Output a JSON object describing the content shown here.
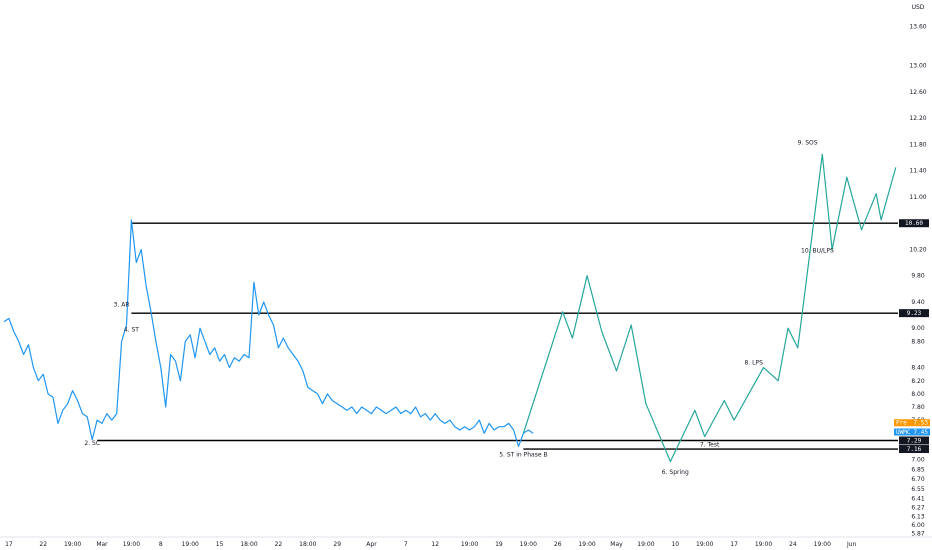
{
  "chart_data": {
    "type": "line",
    "currency": "USD",
    "ylim": [
      5.82,
      14.0
    ],
    "y_ticks": [
      {
        "v": 13.6,
        "label": "13.60"
      },
      {
        "v": 13.0,
        "label": "13.00"
      },
      {
        "v": 12.6,
        "label": "12.60"
      },
      {
        "v": 12.2,
        "label": "12.20"
      },
      {
        "v": 11.8,
        "label": "11.80"
      },
      {
        "v": 11.4,
        "label": "11.40"
      },
      {
        "v": 11.0,
        "label": "11.00"
      },
      {
        "v": 10.2,
        "label": "10.20"
      },
      {
        "v": 9.8,
        "label": "9.80"
      },
      {
        "v": 9.4,
        "label": "9.40"
      },
      {
        "v": 9.0,
        "label": "9.00"
      },
      {
        "v": 8.8,
        "label": "8.80"
      },
      {
        "v": 8.4,
        "label": "8.40"
      },
      {
        "v": 8.2,
        "label": "8.20"
      },
      {
        "v": 8.0,
        "label": "8.00"
      },
      {
        "v": 7.8,
        "label": "7.80"
      },
      {
        "v": 7.6,
        "label": "7.60"
      },
      {
        "v": 7.0,
        "label": "7.00"
      },
      {
        "v": 6.85,
        "label": "6.85"
      },
      {
        "v": 6.7,
        "label": "6.70"
      },
      {
        "v": 6.55,
        "label": "6.55"
      },
      {
        "v": 6.41,
        "label": "6.41"
      },
      {
        "v": 6.27,
        "label": "6.27"
      },
      {
        "v": 6.13,
        "label": "6.13"
      },
      {
        "v": 6.0,
        "label": "6.00"
      },
      {
        "v": 5.87,
        "label": "5.87"
      }
    ],
    "x_ticks": [
      {
        "i": 1,
        "label": "17"
      },
      {
        "i": 8,
        "label": "22"
      },
      {
        "i": 14,
        "label": "19:00"
      },
      {
        "i": 20,
        "label": "Mar"
      },
      {
        "i": 26,
        "label": "19:00"
      },
      {
        "i": 32,
        "label": "8"
      },
      {
        "i": 38,
        "label": "19:00"
      },
      {
        "i": 44,
        "label": "15"
      },
      {
        "i": 50,
        "label": "18:00"
      },
      {
        "i": 56,
        "label": "22"
      },
      {
        "i": 62,
        "label": "18:00"
      },
      {
        "i": 68,
        "label": "29"
      },
      {
        "i": 75,
        "label": "Apr"
      },
      {
        "i": 82,
        "label": "7"
      },
      {
        "i": 88,
        "label": "12"
      },
      {
        "i": 95,
        "label": "19:00"
      },
      {
        "i": 101,
        "label": "19"
      },
      {
        "i": 107,
        "label": "19:00"
      },
      {
        "i": 113,
        "label": "26"
      },
      {
        "i": 119,
        "label": "19:00"
      },
      {
        "i": 125,
        "label": "May"
      },
      {
        "i": 131,
        "label": "19:00"
      },
      {
        "i": 137,
        "label": "10"
      },
      {
        "i": 143,
        "label": "19:00"
      },
      {
        "i": 149,
        "label": "17"
      },
      {
        "i": 155,
        "label": "19:00"
      },
      {
        "i": 161,
        "label": "24"
      },
      {
        "i": 167,
        "label": "19:00"
      },
      {
        "i": 173,
        "label": "Jun"
      }
    ],
    "x_count": 178,
    "series": [
      {
        "role": "price",
        "color": "#2196f3",
        "points": [
          [
            0,
            9.1
          ],
          [
            1,
            9.15
          ],
          [
            2,
            8.95
          ],
          [
            3,
            8.8
          ],
          [
            4,
            8.6
          ],
          [
            5,
            8.75
          ],
          [
            6,
            8.4
          ],
          [
            7,
            8.2
          ],
          [
            8,
            8.3
          ],
          [
            9,
            8.0
          ],
          [
            10,
            7.95
          ],
          [
            11,
            7.55
          ],
          [
            12,
            7.75
          ],
          [
            13,
            7.85
          ],
          [
            14,
            8.05
          ],
          [
            15,
            7.9
          ],
          [
            16,
            7.7
          ],
          [
            17,
            7.65
          ],
          [
            18,
            7.3
          ],
          [
            19,
            7.6
          ],
          [
            20,
            7.55
          ],
          [
            21,
            7.7
          ],
          [
            22,
            7.6
          ],
          [
            23,
            7.7
          ],
          [
            24,
            8.8
          ],
          [
            25,
            9.05
          ],
          [
            26,
            10.65
          ],
          [
            27,
            10.0
          ],
          [
            28,
            10.2
          ],
          [
            29,
            9.65
          ],
          [
            30,
            9.25
          ],
          [
            31,
            8.8
          ],
          [
            32,
            8.4
          ],
          [
            33,
            7.8
          ],
          [
            34,
            8.6
          ],
          [
            35,
            8.5
          ],
          [
            36,
            8.2
          ],
          [
            37,
            8.8
          ],
          [
            38,
            8.9
          ],
          [
            39,
            8.55
          ],
          [
            40,
            9.0
          ],
          [
            41,
            8.8
          ],
          [
            42,
            8.6
          ],
          [
            43,
            8.7
          ],
          [
            44,
            8.5
          ],
          [
            45,
            8.6
          ],
          [
            46,
            8.4
          ],
          [
            47,
            8.55
          ],
          [
            48,
            8.5
          ],
          [
            49,
            8.6
          ],
          [
            50,
            8.55
          ],
          [
            51,
            9.7
          ],
          [
            52,
            9.2
          ],
          [
            53,
            9.4
          ],
          [
            54,
            9.2
          ],
          [
            55,
            9.05
          ],
          [
            56,
            8.7
          ],
          [
            57,
            8.85
          ],
          [
            58,
            8.7
          ],
          [
            59,
            8.6
          ],
          [
            60,
            8.5
          ],
          [
            61,
            8.35
          ],
          [
            62,
            8.1
          ],
          [
            63,
            8.05
          ],
          [
            64,
            8.0
          ],
          [
            65,
            7.85
          ],
          [
            66,
            8.0
          ],
          [
            67,
            7.9
          ],
          [
            68,
            7.85
          ],
          [
            69,
            7.8
          ],
          [
            70,
            7.75
          ],
          [
            71,
            7.8
          ],
          [
            72,
            7.7
          ],
          [
            73,
            7.8
          ],
          [
            74,
            7.75
          ],
          [
            75,
            7.7
          ],
          [
            76,
            7.8
          ],
          [
            77,
            7.75
          ],
          [
            78,
            7.7
          ],
          [
            79,
            7.75
          ],
          [
            80,
            7.8
          ],
          [
            81,
            7.7
          ],
          [
            82,
            7.75
          ],
          [
            83,
            7.7
          ],
          [
            84,
            7.8
          ],
          [
            85,
            7.65
          ],
          [
            86,
            7.7
          ],
          [
            87,
            7.6
          ],
          [
            88,
            7.7
          ],
          [
            89,
            7.6
          ],
          [
            90,
            7.55
          ],
          [
            91,
            7.6
          ],
          [
            92,
            7.5
          ],
          [
            93,
            7.45
          ],
          [
            94,
            7.5
          ],
          [
            95,
            7.45
          ],
          [
            96,
            7.5
          ],
          [
            97,
            7.6
          ],
          [
            98,
            7.4
          ],
          [
            99,
            7.55
          ],
          [
            100,
            7.45
          ],
          [
            101,
            7.5
          ],
          [
            102,
            7.5
          ],
          [
            103,
            7.55
          ],
          [
            104,
            7.45
          ],
          [
            105,
            7.2
          ],
          [
            106,
            7.4
          ],
          [
            107,
            7.45
          ],
          [
            108,
            7.4
          ]
        ]
      },
      {
        "role": "projection",
        "color": "#26a69a",
        "points": [
          [
            106,
            7.4
          ],
          [
            114,
            9.25
          ],
          [
            116,
            8.85
          ],
          [
            119,
            9.8
          ],
          [
            122,
            8.95
          ],
          [
            125,
            8.35
          ],
          [
            128,
            9.05
          ],
          [
            131,
            7.85
          ],
          [
            136,
            6.97
          ],
          [
            141,
            7.75
          ],
          [
            143,
            7.35
          ],
          [
            147,
            7.9
          ],
          [
            149,
            7.6
          ],
          [
            155,
            8.4
          ],
          [
            158,
            8.2
          ],
          [
            160,
            9.0
          ],
          [
            162,
            8.7
          ],
          [
            167,
            11.65
          ],
          [
            169,
            10.2
          ],
          [
            172,
            11.3
          ],
          [
            175,
            10.5
          ],
          [
            178,
            11.05
          ],
          [
            179,
            10.65
          ],
          [
            182,
            11.45
          ]
        ]
      }
    ],
    "levels": [
      {
        "v": 10.6,
        "label": "10.60",
        "from": 26
      },
      {
        "v": 9.23,
        "label": "9.23",
        "from": 26
      },
      {
        "v": 7.29,
        "label": "7.29",
        "from": 19
      },
      {
        "v": 7.16,
        "label": "7.16",
        "from": 106
      }
    ],
    "price_tags": [
      {
        "label": "Pre",
        "value": "7.53",
        "v": 7.53,
        "color": "#ff9800"
      },
      {
        "label": "UWMC",
        "value": "7.45",
        "v": 7.45,
        "color": "#2196f3"
      }
    ],
    "annotations": [
      {
        "text": "2. SC",
        "i": 18,
        "v": 7.22
      },
      {
        "text": "3. AR",
        "i": 24,
        "v": 9.33
      },
      {
        "text": "4. ST",
        "i": 26,
        "v": 8.95
      },
      {
        "text": "5. ST in Phase B",
        "i": 106,
        "v": 7.05
      },
      {
        "text": "6. Spring",
        "i": 137,
        "v": 6.78
      },
      {
        "text": "7. Test",
        "i": 144,
        "v": 7.2
      },
      {
        "text": "8. LPS",
        "i": 153,
        "v": 8.45
      },
      {
        "text": "9. SOS",
        "i": 164,
        "v": 11.8
      },
      {
        "text": "10. BU/LPS",
        "i": 166,
        "v": 10.15
      }
    ]
  }
}
